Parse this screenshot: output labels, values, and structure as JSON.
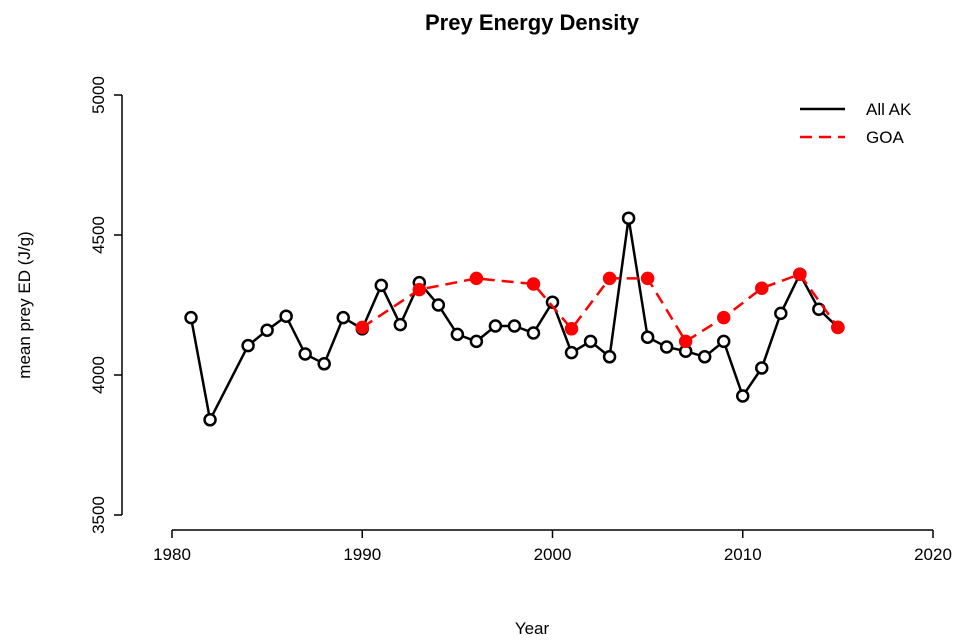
{
  "chart_data": {
    "type": "line",
    "title": "Prey Energy Density",
    "x_label": "Year",
    "y_label": "mean prey ED (J/g)",
    "xlim": [
      1980,
      2020
    ],
    "xticks": [
      1980,
      1990,
      2000,
      2010,
      2020
    ],
    "ylim": [
      3500,
      5000
    ],
    "yticks": [
      3500,
      4000,
      4500,
      5000
    ],
    "legend": "top-right",
    "series": [
      {
        "name": "All AK",
        "color": "#000000",
        "dash": false,
        "point_fill": "#ffffff",
        "x": [
          1981,
          1982,
          1984,
          1985,
          1986,
          1987,
          1988,
          1989,
          1990,
          1991,
          1992,
          1993,
          1994,
          1995,
          1996,
          1997,
          1998,
          1999,
          2000,
          2001,
          2002,
          2003,
          2004,
          2005,
          2006,
          2007,
          2008,
          2009,
          2010,
          2011,
          2012,
          2013,
          2014,
          2015
        ],
        "values": [
          4205,
          3840,
          4105,
          4160,
          4210,
          4075,
          4040,
          4205,
          4165,
          4320,
          4180,
          4330,
          4250,
          4145,
          4120,
          4175,
          4175,
          4150,
          4260,
          4080,
          4120,
          4065,
          4560,
          4135,
          4100,
          4085,
          4065,
          4120,
          3925,
          4025,
          4220,
          4360,
          4235,
          4170
        ]
      },
      {
        "name": "GOA",
        "color": "#ff0000",
        "dash": true,
        "point_fill": "#ff0000",
        "x": [
          1990,
          1993,
          1996,
          1999,
          2001,
          2003,
          2005,
          2007,
          2009,
          2011,
          2013,
          2015
        ],
        "values": [
          4170,
          4305,
          4345,
          4325,
          4165,
          4345,
          4345,
          4120,
          4205,
          4310,
          4360,
          4170
        ]
      }
    ]
  }
}
